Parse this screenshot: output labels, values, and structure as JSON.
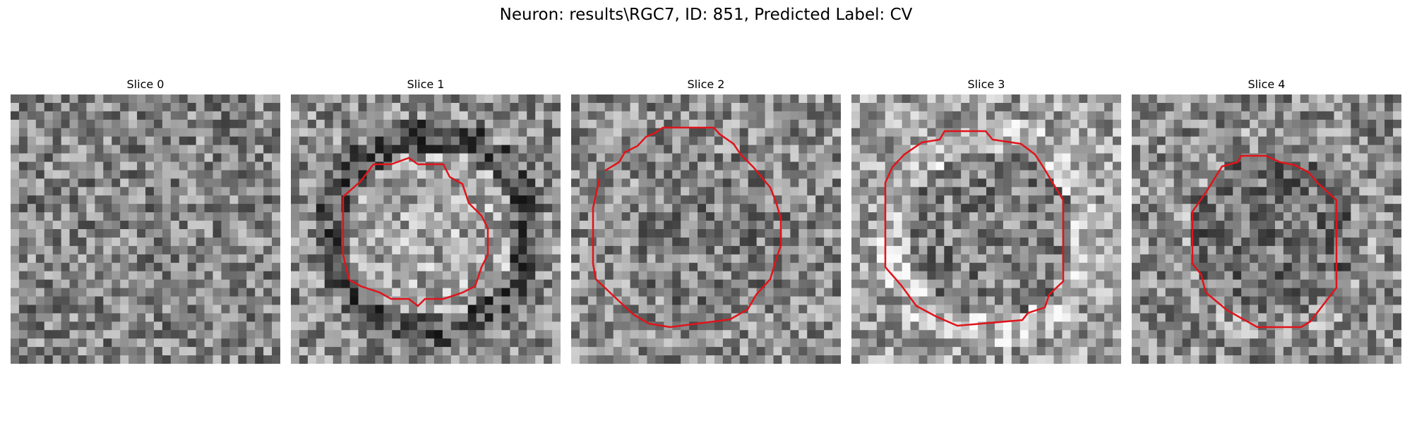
{
  "figure": {
    "title": "Neuron: results\\RGC7, ID: 851, Predicted Label: CV"
  },
  "panels": [
    {
      "title": "Slice 0",
      "seed": 11,
      "base": 0.52,
      "blob": 0.0,
      "ring": 0.0,
      "outline": false
    },
    {
      "title": "Slice 1",
      "seed": 23,
      "base": 0.55,
      "blob": 0.1,
      "ring": -0.2,
      "outline": true
    },
    {
      "title": "Slice 2",
      "seed": 37,
      "base": 0.55,
      "blob": -0.05,
      "ring": 0.0,
      "outline": true
    },
    {
      "title": "Slice 3",
      "seed": 41,
      "base": 0.62,
      "blob": -0.12,
      "ring": 0.12,
      "outline": true
    },
    {
      "title": "Slice 4",
      "seed": 59,
      "base": 0.55,
      "blob": -0.1,
      "ring": 0.05,
      "outline": true
    }
  ],
  "colors": {
    "outline": "#e0141b",
    "background": "#ffffff"
  }
}
